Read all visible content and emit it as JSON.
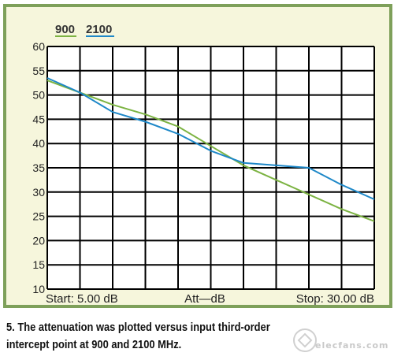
{
  "chart_data": {
    "type": "line",
    "title": "",
    "xlabel": "Att—dB",
    "ylabel": "",
    "x_start_label": "Start: 5.00 dB",
    "x_stop_label": "Stop: 30.00 dB",
    "xlim": [
      5,
      30
    ],
    "ylim": [
      10,
      60
    ],
    "yticks": [
      10,
      15,
      20,
      25,
      30,
      35,
      40,
      45,
      50,
      55,
      60
    ],
    "x_divisions": 10,
    "grid": true,
    "legend_position": "top-left",
    "series": [
      {
        "name": "900",
        "color": "#7cb342",
        "x": [
          5,
          7.5,
          10,
          12.5,
          15,
          17.5,
          20,
          22.5,
          25,
          27.5,
          30
        ],
        "y": [
          53,
          50.5,
          48,
          46,
          43.5,
          39.5,
          35.5,
          32.5,
          29.5,
          26.5,
          24
        ]
      },
      {
        "name": "2100",
        "color": "#1e88c8",
        "x": [
          5,
          7.5,
          10,
          12.5,
          15,
          17.5,
          20,
          22.5,
          25,
          27.5,
          30
        ],
        "y": [
          53.5,
          50.5,
          46.5,
          44.5,
          42,
          38.5,
          36,
          35.5,
          35,
          31.5,
          28.5
        ]
      }
    ]
  },
  "caption": {
    "line1": "5. The attenuation was plotted versus input third-order",
    "line2": "intercept point at 900 and 2100 MHz."
  },
  "watermark": {
    "text": "elecfans.com"
  }
}
